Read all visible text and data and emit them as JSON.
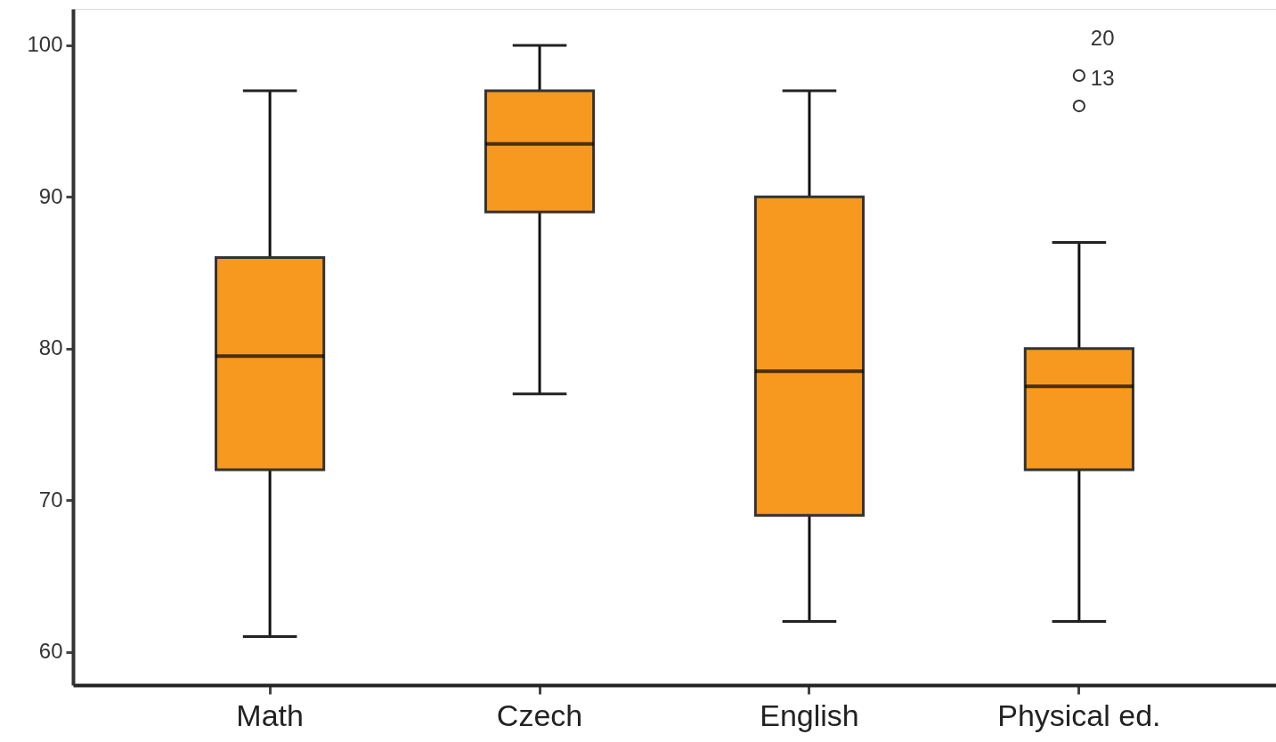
{
  "chart_data": {
    "type": "box",
    "categories": [
      "Math",
      "Czech",
      "English",
      "Physical ed."
    ],
    "series": [
      {
        "color": "#f7991f",
        "boxes": [
          {
            "low": 61,
            "q1": 72,
            "median": 79.5,
            "q3": 86,
            "high": 97
          },
          {
            "low": 77,
            "q1": 89,
            "median": 93.5,
            "q3": 97,
            "high": 100
          },
          {
            "low": 62,
            "q1": 69,
            "median": 78.5,
            "q3": 90,
            "high": 97
          },
          {
            "low": 62,
            "q1": 72,
            "median": 77.5,
            "q3": 80,
            "high": 87,
            "outliers": [
              96,
              98
            ]
          }
        ]
      }
    ],
    "ylim": [
      57.8,
      102.4
    ],
    "yticks": [
      60,
      70,
      80,
      90,
      100
    ],
    "grid": false,
    "marker": "circle",
    "annotations": [
      "20",
      "13"
    ]
  }
}
